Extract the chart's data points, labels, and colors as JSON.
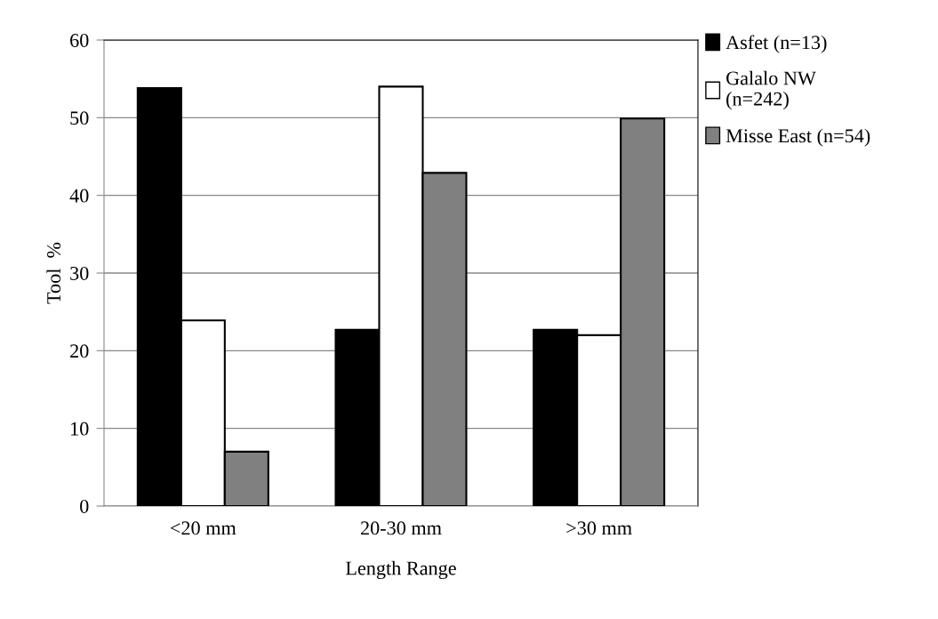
{
  "chart_data": {
    "type": "bar",
    "xlabel": "Length Range",
    "ylabel": "Tool  %",
    "categories": [
      "<20 mm",
      "20-30 mm",
      ">30 mm"
    ],
    "series": [
      {
        "name": "Asfet (n=13)",
        "color": "#000000",
        "values": [
          53.8,
          22.7,
          22.7
        ]
      },
      {
        "name": "Galalo NW\n(n=242)",
        "color": "#ffffff",
        "values": [
          23.9,
          54.0,
          22.0
        ]
      },
      {
        "name": "Misse East (n=54)",
        "color": "#808080",
        "values": [
          7.0,
          42.9,
          49.9
        ]
      }
    ],
    "ylim": [
      0,
      60
    ],
    "yticks": [
      0,
      10,
      20,
      30,
      40,
      50,
      60
    ],
    "grid": "y",
    "legend": "right"
  }
}
